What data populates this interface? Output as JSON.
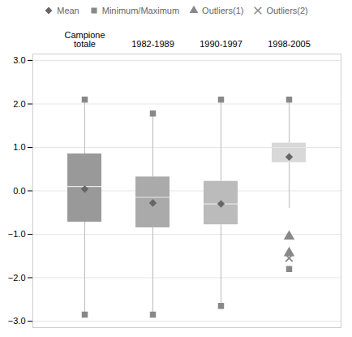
{
  "chart_data": {
    "type": "box",
    "categories": [
      "Campione\ntotale",
      "1982-1989",
      "1990-1997",
      "1998-2005"
    ],
    "boxes": {
      "q1": [
        -0.72,
        -0.85,
        -0.78,
        0.65
      ],
      "q3": [
        0.85,
        0.32,
        0.22,
        1.1
      ],
      "median": [
        0.1,
        -0.15,
        -0.3,
        1.0
      ],
      "colors": [
        "#999999",
        "#aaaaaa",
        "#bbbbbb",
        "#d8d8d8"
      ]
    },
    "whiskers": {
      "low": [
        -2.85,
        -2.85,
        -2.65,
        -0.4
      ],
      "high": [
        2.1,
        1.78,
        2.1,
        2.1
      ],
      "color": "#bbbbbb"
    },
    "series": [
      {
        "name": "Mean",
        "marker": "diamond",
        "color": "#666666",
        "values": [
          0.04,
          -0.28,
          -0.3,
          0.78
        ]
      },
      {
        "name": "Minimum/Maximum",
        "marker": "square",
        "color": "#888888",
        "min": [
          -2.85,
          -2.85,
          -2.65,
          -1.8
        ],
        "max": [
          2.1,
          1.78,
          2.1,
          2.1
        ]
      },
      {
        "name": "Outliers(1)",
        "marker": "triangle",
        "color": "#888888",
        "values": [
          null,
          null,
          null,
          [
            -1.05,
            -1.43
          ]
        ]
      },
      {
        "name": "Outliers(2)",
        "marker": "x",
        "color": "#888888",
        "values": [
          null,
          null,
          null,
          [
            -1.55
          ]
        ]
      }
    ],
    "ylim": [
      -3.15,
      3.15
    ],
    "yticks": [
      -3,
      -2,
      -1,
      0,
      1,
      2,
      3
    ],
    "grid": true,
    "legend": "top"
  }
}
